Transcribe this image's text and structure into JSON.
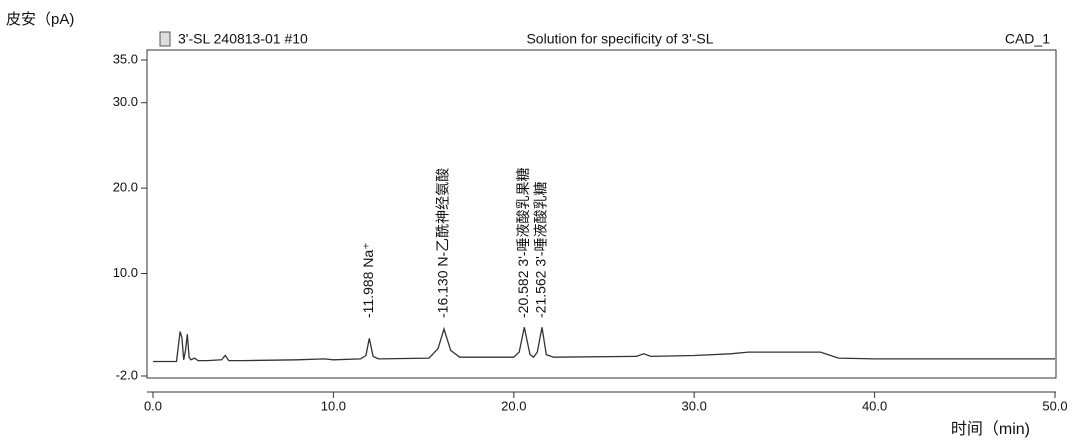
{
  "chart_data": {
    "type": "line",
    "y_label": "皮安（pA)",
    "x_label": "时间（min)",
    "header_left": "3'-SL 240813-01 #10",
    "title": "Solution for specificity of 3'-SL",
    "header_right": "CAD_1",
    "xlim": [
      0,
      50
    ],
    "ylim": [
      -2,
      35
    ],
    "xticks": [
      {
        "value": 0,
        "label": "0.0"
      },
      {
        "value": 10,
        "label": "10.0"
      },
      {
        "value": 20,
        "label": "20.0"
      },
      {
        "value": 30,
        "label": "30.0"
      },
      {
        "value": 40,
        "label": "40.0"
      },
      {
        "value": 50,
        "label": "50.0"
      }
    ],
    "yticks": [
      {
        "value": -2,
        "label": "-2.0"
      },
      {
        "value": 10,
        "label": "10.0"
      },
      {
        "value": 20,
        "label": "20.0"
      },
      {
        "value": 30,
        "label": "30.0"
      },
      {
        "value": 35,
        "label": "35.0"
      }
    ],
    "series": [
      {
        "color": "#333333",
        "x": [
          0,
          1.3,
          1.5,
          1.6,
          1.7,
          1.8,
          1.9,
          2.0,
          2.1,
          2.3,
          2.5,
          3.0,
          3.8,
          4.0,
          4.2,
          5,
          8,
          9.5,
          10,
          11.5,
          11.8,
          11.988,
          12.2,
          12.5,
          15.3,
          15.8,
          16.13,
          16.5,
          17,
          20,
          20.3,
          20.582,
          20.9,
          21.1,
          21.3,
          21.562,
          21.8,
          22.2,
          26.8,
          27.2,
          27.6,
          30,
          32,
          33,
          35,
          37,
          38,
          40,
          45,
          50
        ],
        "values": [
          -0.3,
          -0.3,
          3.2,
          2.5,
          -0.1,
          1.0,
          2.9,
          0.2,
          -0.1,
          0.1,
          -0.2,
          -0.2,
          -0.1,
          0.4,
          -0.2,
          -0.2,
          -0.1,
          0.0,
          -0.1,
          0.0,
          0.4,
          2.4,
          0.3,
          0.0,
          0.1,
          1.2,
          3.5,
          1.0,
          0.2,
          0.2,
          0.8,
          3.7,
          0.5,
          0.2,
          0.8,
          3.7,
          0.5,
          0.2,
          0.3,
          0.6,
          0.3,
          0.4,
          0.6,
          0.8,
          0.8,
          0.8,
          0.1,
          0.0,
          0.0,
          0.0
        ]
      }
    ],
    "annotations": [
      {
        "x": 11.988,
        "text": "-11.988 Na⁺"
      },
      {
        "x": 16.13,
        "text": "-16.130 N-乙酰神经氨酸"
      },
      {
        "x": 20.582,
        "text": "-20.582 3'-唾液酸乳果糖"
      },
      {
        "x": 21.562,
        "text": "-21.562 3'-唾液酸乳糖"
      }
    ]
  }
}
